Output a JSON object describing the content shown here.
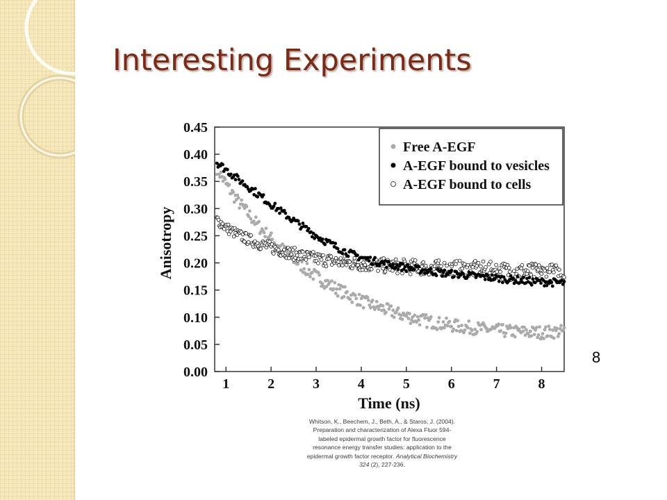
{
  "slide": {
    "title": "Interesting Experiments",
    "page_number": "8",
    "citation_lines": [
      "Whitson, K., Beechem, J., Beth, A., & Staros, J. (2004).",
      "Preparation and characterization of Alexa Fluor 594-",
      "labeled epidermal growth factor for fluorescence",
      "resonance energy transfer studies: application to the",
      "epidermal growth factor receptor. "
    ],
    "citation_journal": "Analytical Biochemistry",
    "citation_volume": "324",
    "citation_tail": " (2), 227-236."
  },
  "chart_data": {
    "type": "scatter",
    "title": "",
    "xlabel": "Time (ns)",
    "ylabel": "Anisotropy",
    "xlim": [
      0.75,
      8.5
    ],
    "ylim": [
      0,
      0.45
    ],
    "xticks": [
      1,
      2,
      3,
      4,
      5,
      6,
      7,
      8
    ],
    "yticks": [
      0.0,
      0.05,
      0.1,
      0.15,
      0.2,
      0.25,
      0.3,
      0.35,
      0.4,
      0.45
    ],
    "ytick_labels": [
      "0.00",
      "0.05",
      "0.10",
      "0.15",
      "0.20",
      "0.25",
      "0.30",
      "0.35",
      "0.40",
      "0.45"
    ],
    "legend_position": "top-right",
    "grid": false,
    "series": [
      {
        "name": "Free A-EGF",
        "marker": "filled-gray",
        "color": "#aaaaaa",
        "x": [
          0.8,
          1.0,
          1.25,
          1.5,
          1.75,
          2.0,
          2.25,
          2.5,
          2.75,
          3.0,
          3.25,
          3.5,
          3.75,
          4.0,
          4.25,
          4.5,
          4.75,
          5.0,
          5.25,
          5.5,
          5.75,
          6.0,
          6.25,
          6.5,
          6.75,
          7.0,
          7.25,
          7.5,
          7.75,
          8.0,
          8.25,
          8.5
        ],
        "y": [
          0.375,
          0.345,
          0.315,
          0.29,
          0.265,
          0.245,
          0.225,
          0.207,
          0.19,
          0.175,
          0.162,
          0.15,
          0.14,
          0.13,
          0.122,
          0.115,
          0.108,
          0.102,
          0.097,
          0.092,
          0.088,
          0.085,
          0.082,
          0.08,
          0.078,
          0.076,
          0.074,
          0.073,
          0.072,
          0.072,
          0.073,
          0.074
        ]
      },
      {
        "name": "A-EGF bound to vesicles",
        "marker": "filled-black",
        "color": "#000000",
        "x": [
          0.8,
          1.0,
          1.25,
          1.5,
          1.75,
          2.0,
          2.25,
          2.5,
          2.75,
          3.0,
          3.25,
          3.5,
          3.75,
          4.0,
          4.25,
          4.5,
          4.75,
          5.0,
          5.25,
          5.5,
          5.75,
          6.0,
          6.25,
          6.5,
          6.75,
          7.0,
          7.25,
          7.5,
          7.75,
          8.0,
          8.25,
          8.5
        ],
        "y": [
          0.385,
          0.372,
          0.355,
          0.34,
          0.324,
          0.308,
          0.293,
          0.278,
          0.264,
          0.25,
          0.238,
          0.227,
          0.217,
          0.21,
          0.204,
          0.199,
          0.195,
          0.191,
          0.188,
          0.185,
          0.182,
          0.18,
          0.178,
          0.176,
          0.174,
          0.172,
          0.17,
          0.168,
          0.166,
          0.165,
          0.164,
          0.163
        ]
      },
      {
        "name": "A-EGF bound to cells",
        "marker": "open-circle",
        "color": "#111111",
        "x": [
          0.8,
          1.0,
          1.25,
          1.5,
          1.75,
          2.0,
          2.25,
          2.5,
          2.75,
          3.0,
          3.25,
          3.5,
          3.75,
          4.0,
          4.25,
          4.5,
          4.75,
          5.0,
          5.25,
          5.5,
          5.75,
          6.0,
          6.25,
          6.5,
          6.75,
          7.0,
          7.25,
          7.5,
          7.75,
          8.0,
          8.25,
          8.5
        ],
        "y": [
          0.28,
          0.265,
          0.253,
          0.243,
          0.235,
          0.228,
          0.222,
          0.217,
          0.212,
          0.208,
          0.205,
          0.202,
          0.2,
          0.198,
          0.196,
          0.195,
          0.194,
          0.193,
          0.192,
          0.191,
          0.19,
          0.19,
          0.189,
          0.188,
          0.187,
          0.186,
          0.185,
          0.184,
          0.183,
          0.182,
          0.181,
          0.18
        ]
      }
    ]
  }
}
